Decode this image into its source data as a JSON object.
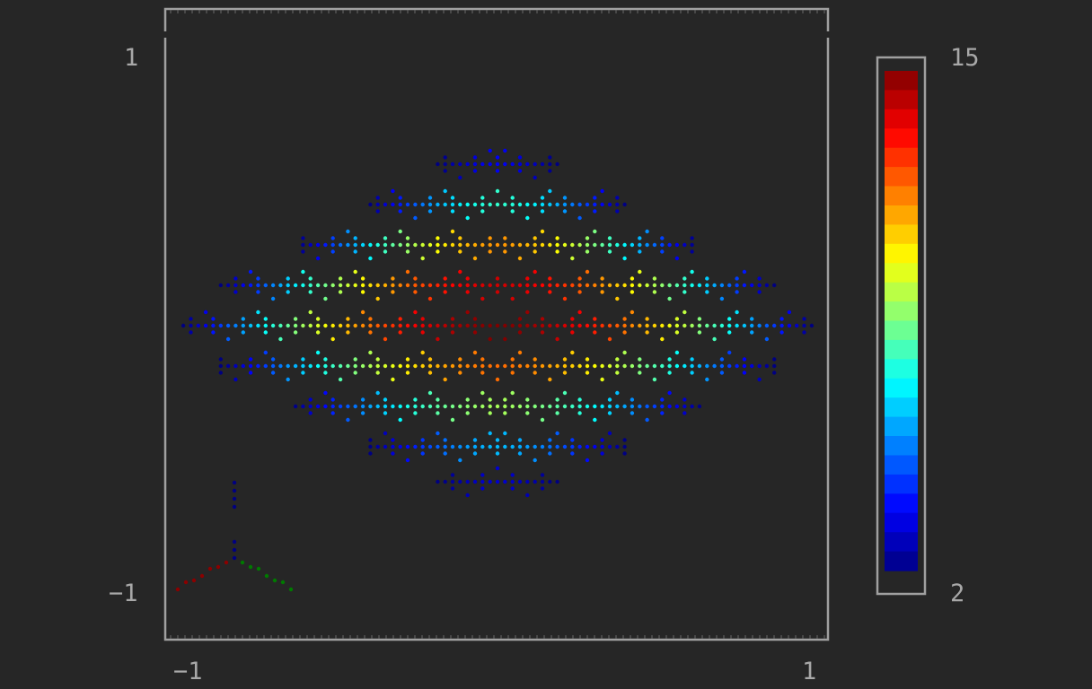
{
  "chart_data": {
    "type": "scatter",
    "title": "",
    "xlabel": "",
    "ylabel": "",
    "xlim": [
      -1,
      1
    ],
    "ylim": [
      -1,
      1
    ],
    "x_ticks": [
      "−1",
      "1"
    ],
    "y_ticks": [
      "1",
      "−1"
    ],
    "grid": false,
    "colorbar": {
      "colormap": "jet",
      "min_label": "15",
      "max_label": "2",
      "range": [
        2,
        15
      ]
    },
    "axes_indicator": {
      "colors": {
        "x": "#8b0000",
        "y": "#007a00",
        "z": "#000080"
      }
    },
    "series": [
      {
        "shape": "point cloud of dots arranged in horizontal bands forming a diamond / lens shape centered at (0, 0.05); color encodes value (blue = low at edges, red = high at center)",
        "rows": [
          {
            "y": 0.6,
            "half_width": 0.18,
            "peak": 3.5
          },
          {
            "y": 0.45,
            "half_width": 0.4,
            "peak": 7.5
          },
          {
            "y": 0.3,
            "half_width": 0.62,
            "peak": 11.5
          },
          {
            "y": 0.15,
            "half_width": 0.86,
            "peak": 14
          },
          {
            "y": 0.0,
            "half_width": 0.98,
            "peak": 15
          },
          {
            "y": -0.15,
            "half_width": 0.86,
            "peak": 12
          },
          {
            "y": -0.3,
            "half_width": 0.64,
            "peak": 9
          },
          {
            "y": -0.45,
            "half_width": 0.4,
            "peak": 6
          },
          {
            "y": -0.58,
            "half_width": 0.18,
            "peak": 3
          }
        ]
      }
    ]
  }
}
